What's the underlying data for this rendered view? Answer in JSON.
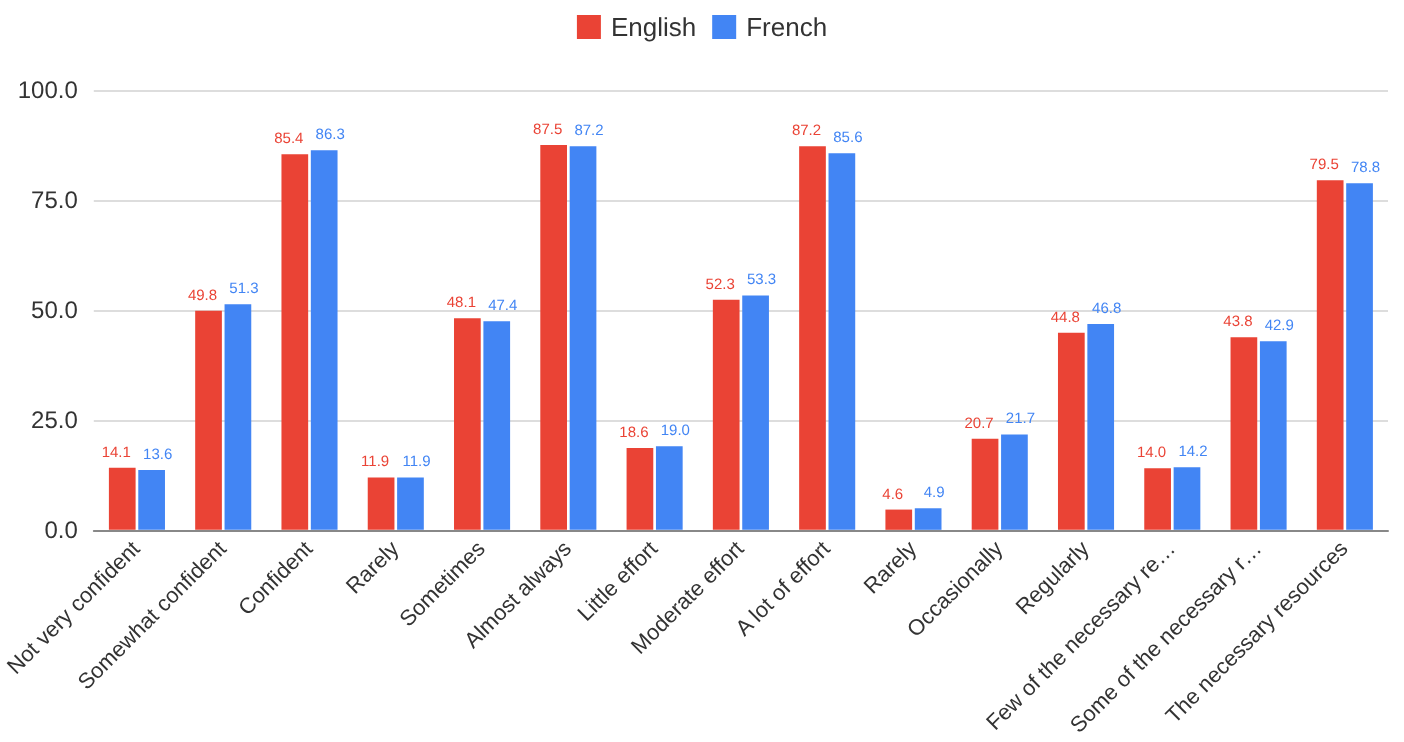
{
  "chart_data": {
    "type": "bar",
    "categories": [
      "Not very confident",
      "Somewhat confident",
      "Confident",
      "Rarely",
      "Sometimes",
      "Almost always",
      "Little effort",
      "Moderate effort",
      "A lot of effort",
      "Rarely",
      "Occasionally",
      "Regularly",
      "Few of the necessary re…",
      "Some of the necessary r…",
      "The necessary resources"
    ],
    "series": [
      {
        "name": "English",
        "color": "#ea4335",
        "values": [
          14.1,
          49.8,
          85.4,
          11.9,
          48.1,
          87.5,
          18.6,
          52.3,
          87.2,
          4.6,
          20.7,
          44.8,
          14.0,
          43.8,
          79.5
        ],
        "value_labels": [
          "14.1",
          "49.8",
          "85.4",
          "11.9",
          "48.1",
          "87.5",
          "18.6",
          "52.3",
          "87.2",
          "4.6",
          "20.7",
          "44.8",
          "14.0",
          "43.8",
          "79.5"
        ]
      },
      {
        "name": "French",
        "color": "#4285f4",
        "values": [
          13.6,
          51.3,
          86.3,
          11.9,
          47.4,
          87.2,
          19.0,
          53.3,
          85.6,
          4.9,
          21.7,
          46.8,
          14.2,
          42.9,
          78.8
        ],
        "value_labels": [
          "13.6",
          "51.3",
          "86.3",
          "11.9",
          "47.4",
          "87.2",
          "19.0",
          "53.3",
          "85.6",
          "4.9",
          "21.7",
          "46.8",
          "14.2",
          "42.9",
          "78.8"
        ]
      }
    ],
    "ylim": [
      0,
      100
    ],
    "yticks": [
      {
        "value": 0,
        "label": "0.0"
      },
      {
        "value": 25,
        "label": "25.0"
      },
      {
        "value": 50,
        "label": "50.0"
      },
      {
        "value": 75,
        "label": "75.0"
      },
      {
        "value": 100,
        "label": "100.0"
      }
    ],
    "grid": "y",
    "legend": "top"
  }
}
